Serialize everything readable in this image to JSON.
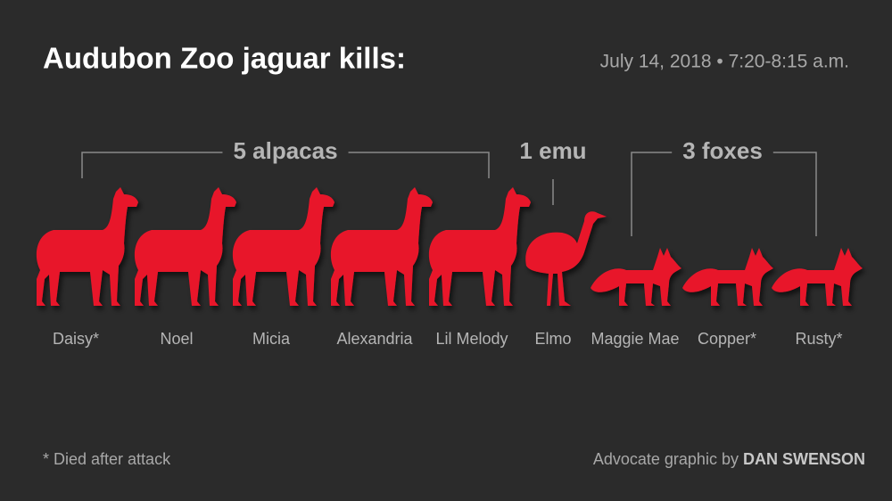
{
  "header": {
    "title": "Audubon Zoo jaguar kills:",
    "date": "July 14, 2018 • 7:20-8:15 a.m."
  },
  "groups": [
    {
      "label": "5 alpacas",
      "animals": [
        "Daisy*",
        "Noel",
        "Micia",
        "Alexandria",
        "Lil Melody"
      ]
    },
    {
      "label": "1 emu",
      "animals": [
        "Elmo"
      ]
    },
    {
      "label": "3 foxes",
      "animals": [
        "Maggie Mae",
        "Copper*",
        "Rusty*"
      ]
    }
  ],
  "footnote": "* Died after attack",
  "credit": {
    "prefix": "Advocate graphic by",
    "author": "DAN SWENSON"
  }
}
